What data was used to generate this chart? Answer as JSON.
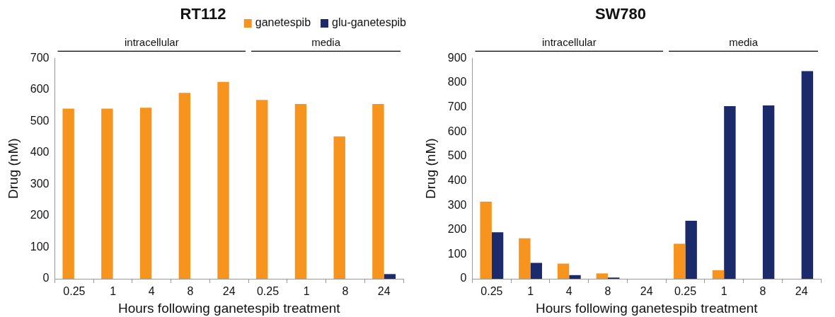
{
  "chart_data": [
    {
      "type": "bar",
      "title": "RT112",
      "xlabel": "Hours following ganetespib treatment",
      "ylabel": "Drug (nM)",
      "categories": [
        "0.25",
        "1",
        "4",
        "8",
        "24",
        "0.25",
        "1",
        "8",
        "24"
      ],
      "series": [
        {
          "name": "ganetespib",
          "color": "#f7941d",
          "values": [
            540,
            540,
            543,
            590,
            625,
            568,
            555,
            452,
            555
          ]
        },
        {
          "name": "glu-ganetespib",
          "color": "#1b2a6b",
          "values": [
            0,
            0,
            0,
            0,
            0,
            0,
            0,
            0,
            15
          ]
        }
      ],
      "ylim": [
        0,
        700
      ],
      "yticks": [
        0,
        100,
        200,
        300,
        400,
        500,
        600,
        700
      ],
      "grid": false,
      "legend": "top right",
      "annotations": [
        "intracellular",
        "media"
      ]
    },
    {
      "type": "bar",
      "title": "SW780",
      "xlabel": "Hours following ganetespib treatment",
      "ylabel": "Drug (nM)",
      "categories": [
        "0.25",
        "1",
        "4",
        "8",
        "24",
        "0.25",
        "1",
        "8",
        "24"
      ],
      "series": [
        {
          "color": "#f7941d",
          "values": [
            315,
            165,
            62,
            22,
            0,
            143,
            35,
            0,
            0
          ]
        },
        {
          "color": "#1b2a6b",
          "values": [
            190,
            65,
            15,
            5,
            0,
            237,
            705,
            708,
            848
          ]
        }
      ],
      "ylim": [
        0,
        900
      ],
      "yticks": [
        0,
        100,
        200,
        300,
        400,
        500,
        600,
        700,
        800,
        900
      ],
      "grid": false,
      "legend": false,
      "annotations": [
        "intracellular",
        "media"
      ]
    }
  ]
}
